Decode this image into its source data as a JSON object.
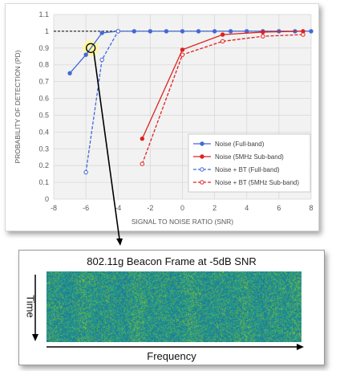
{
  "chart_data": {
    "type": "line",
    "xlabel": "SIGNAL TO NOISE RATIO (SNR)",
    "ylabel": "PROBABILITY OF DETECTION (PD)",
    "xlim": [
      -8,
      8
    ],
    "ylim": [
      0,
      1.1
    ],
    "x_ticks": [
      "-8",
      "-6",
      "-4",
      "-2",
      "0",
      "2",
      "4",
      "6",
      "8"
    ],
    "y_ticks": [
      "0",
      "0.1",
      "0.2",
      "0.3",
      "0.4",
      "0.5",
      "0.6",
      "0.7",
      "0.8",
      "0.9",
      "1",
      "1.1"
    ],
    "grid": true,
    "legend_position": "bottom-right",
    "reference_line": 1.0,
    "series": [
      {
        "name": "Noise (Full-band)",
        "color": "#4169d6",
        "style": "solid",
        "marker": "filled",
        "x": [
          -7,
          -6,
          -5,
          -4,
          -3,
          -2,
          -1,
          0,
          1,
          2,
          3,
          4,
          5,
          6,
          7,
          8
        ],
        "y": [
          0.75,
          0.86,
          0.99,
          1,
          1,
          1,
          1,
          1,
          1,
          1,
          1,
          1,
          1,
          1,
          1,
          1
        ]
      },
      {
        "name": "Noise (5MHz Sub-band)",
        "color": "#e02020",
        "style": "solid",
        "marker": "filled",
        "x": [
          -2.5,
          0,
          2.5,
          5,
          7.5
        ],
        "y": [
          0.36,
          0.89,
          0.98,
          0.995,
          1
        ]
      },
      {
        "name": "Noise + BT (Full-band)",
        "color": "#4169d6",
        "style": "dashed",
        "marker": "open",
        "x": [
          -6,
          -5,
          -4
        ],
        "y": [
          0.16,
          0.83,
          1
        ]
      },
      {
        "name": "Noise + BT (5MHz Sub-band)",
        "color": "#e02020",
        "style": "dashed",
        "marker": "open",
        "x": [
          -2.5,
          0,
          2.5,
          5,
          7.5
        ],
        "y": [
          0.21,
          0.86,
          0.94,
          0.97,
          0.98
        ]
      }
    ],
    "highlight_point": {
      "x": -5.7,
      "y": 0.9
    }
  },
  "spectrogram": {
    "title": "802.11g Beacon Frame at -5dB SNR",
    "x_label": "Frequency",
    "y_label": "Time"
  }
}
